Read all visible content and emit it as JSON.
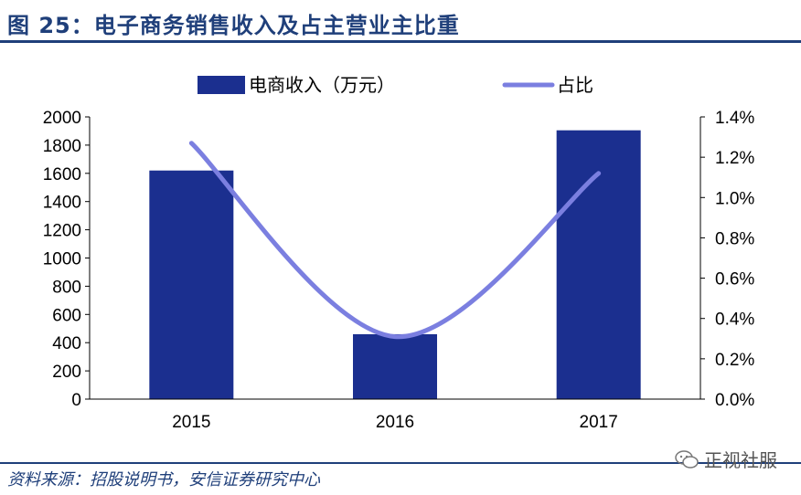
{
  "title": "图 25：电子商务销售收入及占主营业主比重",
  "source": "资料来源：招股说明书，安信证券研究中心",
  "watermark": "正视社服",
  "colors": {
    "bar": "#1b2f8f",
    "line": "#7b7fe0",
    "accent": "#1f3f7a",
    "axis": "#000000"
  },
  "chart_data": {
    "type": "bar",
    "categories": [
      "2015",
      "2016",
      "2017"
    ],
    "series": [
      {
        "name": "电商收入（万元）",
        "type": "bar",
        "axis": "left",
        "values": [
          1620,
          460,
          1905
        ]
      },
      {
        "name": "占比",
        "type": "line",
        "axis": "right",
        "values": [
          1.27,
          0.31,
          1.12
        ],
        "unit": "%"
      }
    ],
    "ylim_left": [
      0,
      2000
    ],
    "yticks_left": [
      "0",
      "200",
      "400",
      "600",
      "800",
      "1000",
      "1200",
      "1400",
      "1600",
      "1800",
      "2000"
    ],
    "ylim_right": [
      0,
      1.4
    ],
    "yticks_right": [
      "0.0%",
      "0.2%",
      "0.4%",
      "0.6%",
      "0.8%",
      "1.0%",
      "1.2%",
      "1.4%"
    ],
    "legend_placement": "top-center",
    "grid": false
  }
}
